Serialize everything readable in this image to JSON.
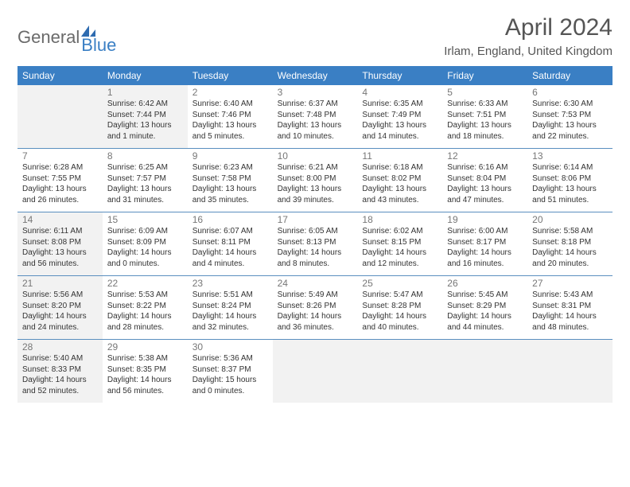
{
  "logo": {
    "text1": "General",
    "text2": "Blue"
  },
  "title": "April 2024",
  "location": "Irlam, England, United Kingdom",
  "colors": {
    "header_bg": "#3a7fc4",
    "header_text": "#ffffff",
    "border": "#5a8fbf",
    "shaded": "#f2f2f2",
    "page_bg": "#ffffff",
    "text": "#333333",
    "muted": "#777777"
  },
  "weekdays": [
    "Sunday",
    "Monday",
    "Tuesday",
    "Wednesday",
    "Thursday",
    "Friday",
    "Saturday"
  ],
  "weeks": [
    [
      {
        "num": "",
        "shaded": true
      },
      {
        "num": "1",
        "shaded": true,
        "l1": "Sunrise: 6:42 AM",
        "l2": "Sunset: 7:44 PM",
        "l3": "Daylight: 13 hours",
        "l4": "and 1 minute."
      },
      {
        "num": "2",
        "shaded": false,
        "l1": "Sunrise: 6:40 AM",
        "l2": "Sunset: 7:46 PM",
        "l3": "Daylight: 13 hours",
        "l4": "and 5 minutes."
      },
      {
        "num": "3",
        "shaded": false,
        "l1": "Sunrise: 6:37 AM",
        "l2": "Sunset: 7:48 PM",
        "l3": "Daylight: 13 hours",
        "l4": "and 10 minutes."
      },
      {
        "num": "4",
        "shaded": false,
        "l1": "Sunrise: 6:35 AM",
        "l2": "Sunset: 7:49 PM",
        "l3": "Daylight: 13 hours",
        "l4": "and 14 minutes."
      },
      {
        "num": "5",
        "shaded": false,
        "l1": "Sunrise: 6:33 AM",
        "l2": "Sunset: 7:51 PM",
        "l3": "Daylight: 13 hours",
        "l4": "and 18 minutes."
      },
      {
        "num": "6",
        "shaded": false,
        "l1": "Sunrise: 6:30 AM",
        "l2": "Sunset: 7:53 PM",
        "l3": "Daylight: 13 hours",
        "l4": "and 22 minutes."
      }
    ],
    [
      {
        "num": "7",
        "shaded": false,
        "l1": "Sunrise: 6:28 AM",
        "l2": "Sunset: 7:55 PM",
        "l3": "Daylight: 13 hours",
        "l4": "and 26 minutes."
      },
      {
        "num": "8",
        "shaded": false,
        "l1": "Sunrise: 6:25 AM",
        "l2": "Sunset: 7:57 PM",
        "l3": "Daylight: 13 hours",
        "l4": "and 31 minutes."
      },
      {
        "num": "9",
        "shaded": false,
        "l1": "Sunrise: 6:23 AM",
        "l2": "Sunset: 7:58 PM",
        "l3": "Daylight: 13 hours",
        "l4": "and 35 minutes."
      },
      {
        "num": "10",
        "shaded": false,
        "l1": "Sunrise: 6:21 AM",
        "l2": "Sunset: 8:00 PM",
        "l3": "Daylight: 13 hours",
        "l4": "and 39 minutes."
      },
      {
        "num": "11",
        "shaded": false,
        "l1": "Sunrise: 6:18 AM",
        "l2": "Sunset: 8:02 PM",
        "l3": "Daylight: 13 hours",
        "l4": "and 43 minutes."
      },
      {
        "num": "12",
        "shaded": false,
        "l1": "Sunrise: 6:16 AM",
        "l2": "Sunset: 8:04 PM",
        "l3": "Daylight: 13 hours",
        "l4": "and 47 minutes."
      },
      {
        "num": "13",
        "shaded": false,
        "l1": "Sunrise: 6:14 AM",
        "l2": "Sunset: 8:06 PM",
        "l3": "Daylight: 13 hours",
        "l4": "and 51 minutes."
      }
    ],
    [
      {
        "num": "14",
        "shaded": true,
        "l1": "Sunrise: 6:11 AM",
        "l2": "Sunset: 8:08 PM",
        "l3": "Daylight: 13 hours",
        "l4": "and 56 minutes."
      },
      {
        "num": "15",
        "shaded": false,
        "l1": "Sunrise: 6:09 AM",
        "l2": "Sunset: 8:09 PM",
        "l3": "Daylight: 14 hours",
        "l4": "and 0 minutes."
      },
      {
        "num": "16",
        "shaded": false,
        "l1": "Sunrise: 6:07 AM",
        "l2": "Sunset: 8:11 PM",
        "l3": "Daylight: 14 hours",
        "l4": "and 4 minutes."
      },
      {
        "num": "17",
        "shaded": false,
        "l1": "Sunrise: 6:05 AM",
        "l2": "Sunset: 8:13 PM",
        "l3": "Daylight: 14 hours",
        "l4": "and 8 minutes."
      },
      {
        "num": "18",
        "shaded": false,
        "l1": "Sunrise: 6:02 AM",
        "l2": "Sunset: 8:15 PM",
        "l3": "Daylight: 14 hours",
        "l4": "and 12 minutes."
      },
      {
        "num": "19",
        "shaded": false,
        "l1": "Sunrise: 6:00 AM",
        "l2": "Sunset: 8:17 PM",
        "l3": "Daylight: 14 hours",
        "l4": "and 16 minutes."
      },
      {
        "num": "20",
        "shaded": false,
        "l1": "Sunrise: 5:58 AM",
        "l2": "Sunset: 8:18 PM",
        "l3": "Daylight: 14 hours",
        "l4": "and 20 minutes."
      }
    ],
    [
      {
        "num": "21",
        "shaded": true,
        "l1": "Sunrise: 5:56 AM",
        "l2": "Sunset: 8:20 PM",
        "l3": "Daylight: 14 hours",
        "l4": "and 24 minutes."
      },
      {
        "num": "22",
        "shaded": false,
        "l1": "Sunrise: 5:53 AM",
        "l2": "Sunset: 8:22 PM",
        "l3": "Daylight: 14 hours",
        "l4": "and 28 minutes."
      },
      {
        "num": "23",
        "shaded": false,
        "l1": "Sunrise: 5:51 AM",
        "l2": "Sunset: 8:24 PM",
        "l3": "Daylight: 14 hours",
        "l4": "and 32 minutes."
      },
      {
        "num": "24",
        "shaded": false,
        "l1": "Sunrise: 5:49 AM",
        "l2": "Sunset: 8:26 PM",
        "l3": "Daylight: 14 hours",
        "l4": "and 36 minutes."
      },
      {
        "num": "25",
        "shaded": false,
        "l1": "Sunrise: 5:47 AM",
        "l2": "Sunset: 8:28 PM",
        "l3": "Daylight: 14 hours",
        "l4": "and 40 minutes."
      },
      {
        "num": "26",
        "shaded": false,
        "l1": "Sunrise: 5:45 AM",
        "l2": "Sunset: 8:29 PM",
        "l3": "Daylight: 14 hours",
        "l4": "and 44 minutes."
      },
      {
        "num": "27",
        "shaded": false,
        "l1": "Sunrise: 5:43 AM",
        "l2": "Sunset: 8:31 PM",
        "l3": "Daylight: 14 hours",
        "l4": "and 48 minutes."
      }
    ],
    [
      {
        "num": "28",
        "shaded": true,
        "l1": "Sunrise: 5:40 AM",
        "l2": "Sunset: 8:33 PM",
        "l3": "Daylight: 14 hours",
        "l4": "and 52 minutes."
      },
      {
        "num": "29",
        "shaded": false,
        "l1": "Sunrise: 5:38 AM",
        "l2": "Sunset: 8:35 PM",
        "l3": "Daylight: 14 hours",
        "l4": "and 56 minutes."
      },
      {
        "num": "30",
        "shaded": false,
        "l1": "Sunrise: 5:36 AM",
        "l2": "Sunset: 8:37 PM",
        "l3": "Daylight: 15 hours",
        "l4": "and 0 minutes."
      },
      {
        "num": "",
        "shaded": true
      },
      {
        "num": "",
        "shaded": true
      },
      {
        "num": "",
        "shaded": true
      },
      {
        "num": "",
        "shaded": true
      }
    ]
  ]
}
